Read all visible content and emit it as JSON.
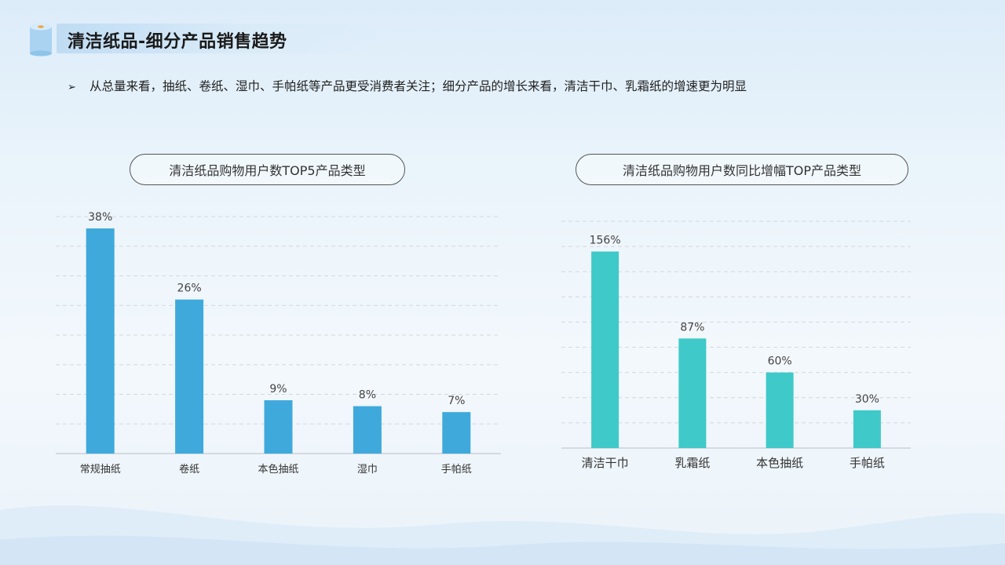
{
  "header": {
    "title": "清洁纸品-细分产品销售趋势",
    "bullet": "从总量来看，抽纸、卷纸、湿巾、手帕纸等产品更受消费者关注；细分产品的增长来看，清洁干巾、乳霜纸的增速更为明显"
  },
  "icons": {
    "header": "tissue-roll-icon",
    "bullet": "arrow-bullet-icon"
  },
  "colors": {
    "bar_left": "#3fa9dc",
    "bar_right": "#3fc9c9",
    "grid": "#d2d8de",
    "axis": "#c4cad0"
  },
  "chart_data": [
    {
      "type": "bar",
      "title": "清洁纸品购物用户数TOP5产品类型",
      "categories": [
        "常规抽纸",
        "卷纸",
        "本色抽纸",
        "湿巾",
        "手帕纸"
      ],
      "values": [
        38,
        26,
        9,
        8,
        7
      ],
      "value_labels": [
        "38%",
        "26%",
        "9%",
        "8%",
        "7%"
      ],
      "ylim": [
        0,
        40
      ],
      "grid": true
    },
    {
      "type": "bar",
      "title": "清洁纸品购物用户数同比增幅TOP产品类型",
      "categories": [
        "清洁干巾",
        "乳霜纸",
        "本色抽纸",
        "手帕纸"
      ],
      "values": [
        156,
        87,
        60,
        30
      ],
      "value_labels": [
        "156%",
        "87%",
        "60%",
        "30%"
      ],
      "ylim": [
        0,
        180
      ],
      "grid": true
    }
  ]
}
